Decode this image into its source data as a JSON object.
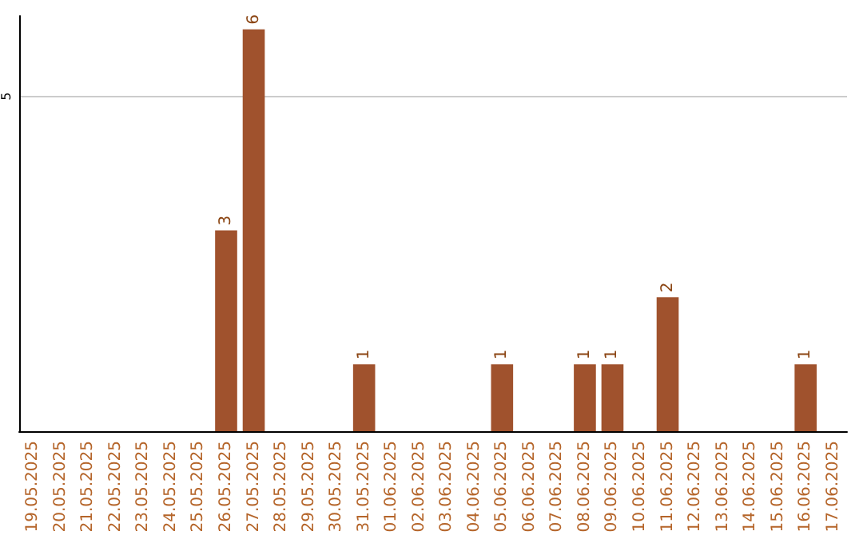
{
  "chart_data": {
    "type": "bar",
    "categories": [
      "19.05.2025",
      "20.05.2025",
      "21.05.2025",
      "22.05.2025",
      "23.05.2025",
      "24.05.2025",
      "25.05.2025",
      "26.05.2025",
      "27.05.2025",
      "28.05.2025",
      "29.05.2025",
      "30.05.2025",
      "31.05.2025",
      "01.06.2025",
      "02.06.2025",
      "03.06.2025",
      "04.06.2025",
      "05.06.2025",
      "06.06.2025",
      "07.06.2025",
      "08.06.2025",
      "09.06.2025",
      "10.06.2025",
      "11.06.2025",
      "12.06.2025",
      "13.06.2025",
      "14.06.2025",
      "15.06.2025",
      "16.06.2025",
      "17.06.2025"
    ],
    "values": [
      0,
      0,
      0,
      0,
      0,
      0,
      0,
      3,
      6,
      0,
      0,
      0,
      1,
      0,
      0,
      0,
      0,
      1,
      0,
      0,
      1,
      1,
      0,
      2,
      0,
      0,
      0,
      0,
      1,
      0
    ],
    "value_labels": [
      null,
      null,
      null,
      null,
      null,
      null,
      null,
      "3",
      "6",
      null,
      null,
      null,
      "1",
      null,
      null,
      null,
      null,
      "1",
      null,
      null,
      "1",
      "1",
      null,
      "2",
      null,
      null,
      null,
      null,
      "1",
      null
    ],
    "color": "#a0522d",
    "ylim": [
      0,
      6.2
    ],
    "yticks": [
      5
    ],
    "grid": "y"
  }
}
